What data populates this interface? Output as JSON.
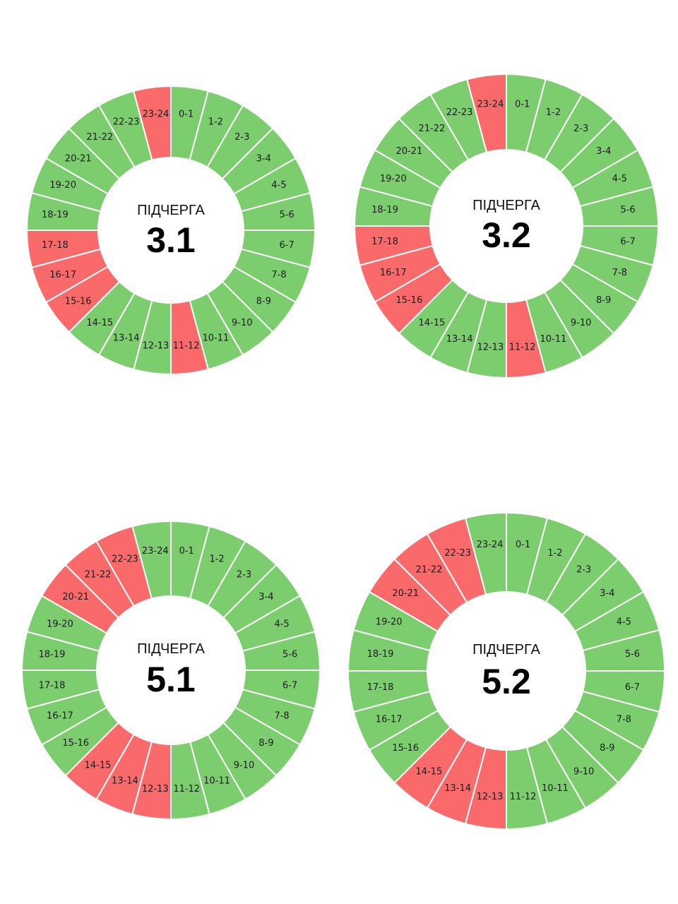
{
  "colors": {
    "on": "#7ccd6e",
    "off": "#fa6a6a"
  },
  "legend_meaning": {
    "on": "green",
    "off": "red"
  },
  "chart_data": [
    {
      "type": "pie",
      "caption": "ПІДЧЕРГА",
      "title": "3.1",
      "categories": [
        "0-1",
        "1-2",
        "2-3",
        "3-4",
        "4-5",
        "5-6",
        "6-7",
        "7-8",
        "8-9",
        "9-10",
        "10-11",
        "11-12",
        "12-13",
        "13-14",
        "14-15",
        "15-16",
        "16-17",
        "17-18",
        "18-19",
        "19-20",
        "20-21",
        "21-22",
        "22-23",
        "23-24"
      ],
      "off_hours": [
        "11-12",
        "15-16",
        "16-17",
        "17-18",
        "23-24"
      ]
    },
    {
      "type": "pie",
      "caption": "ПІДЧЕРГА",
      "title": "3.2",
      "categories": [
        "0-1",
        "1-2",
        "2-3",
        "3-4",
        "4-5",
        "5-6",
        "6-7",
        "7-8",
        "8-9",
        "9-10",
        "10-11",
        "11-12",
        "12-13",
        "13-14",
        "14-15",
        "15-16",
        "16-17",
        "17-18",
        "18-19",
        "19-20",
        "20-21",
        "21-22",
        "22-23",
        "23-24"
      ],
      "off_hours": [
        "11-12",
        "15-16",
        "16-17",
        "17-18",
        "23-24"
      ]
    },
    {
      "type": "pie",
      "caption": "ПІДЧЕРГА",
      "title": "5.1",
      "categories": [
        "0-1",
        "1-2",
        "2-3",
        "3-4",
        "4-5",
        "5-6",
        "6-7",
        "7-8",
        "8-9",
        "9-10",
        "10-11",
        "11-12",
        "12-13",
        "13-14",
        "14-15",
        "15-16",
        "16-17",
        "17-18",
        "18-19",
        "19-20",
        "20-21",
        "21-22",
        "22-23",
        "23-24"
      ],
      "off_hours": [
        "12-13",
        "13-14",
        "14-15",
        "20-21",
        "21-22",
        "22-23"
      ]
    },
    {
      "type": "pie",
      "caption": "ПІДЧЕРГА",
      "title": "5.2",
      "categories": [
        "0-1",
        "1-2",
        "2-3",
        "3-4",
        "4-5",
        "5-6",
        "6-7",
        "7-8",
        "8-9",
        "9-10",
        "10-11",
        "11-12",
        "12-13",
        "13-14",
        "14-15",
        "15-16",
        "16-17",
        "17-18",
        "18-19",
        "19-20",
        "20-21",
        "21-22",
        "22-23",
        "23-24"
      ],
      "off_hours": [
        "12-13",
        "13-14",
        "14-15",
        "20-21",
        "21-22",
        "22-23"
      ]
    }
  ]
}
